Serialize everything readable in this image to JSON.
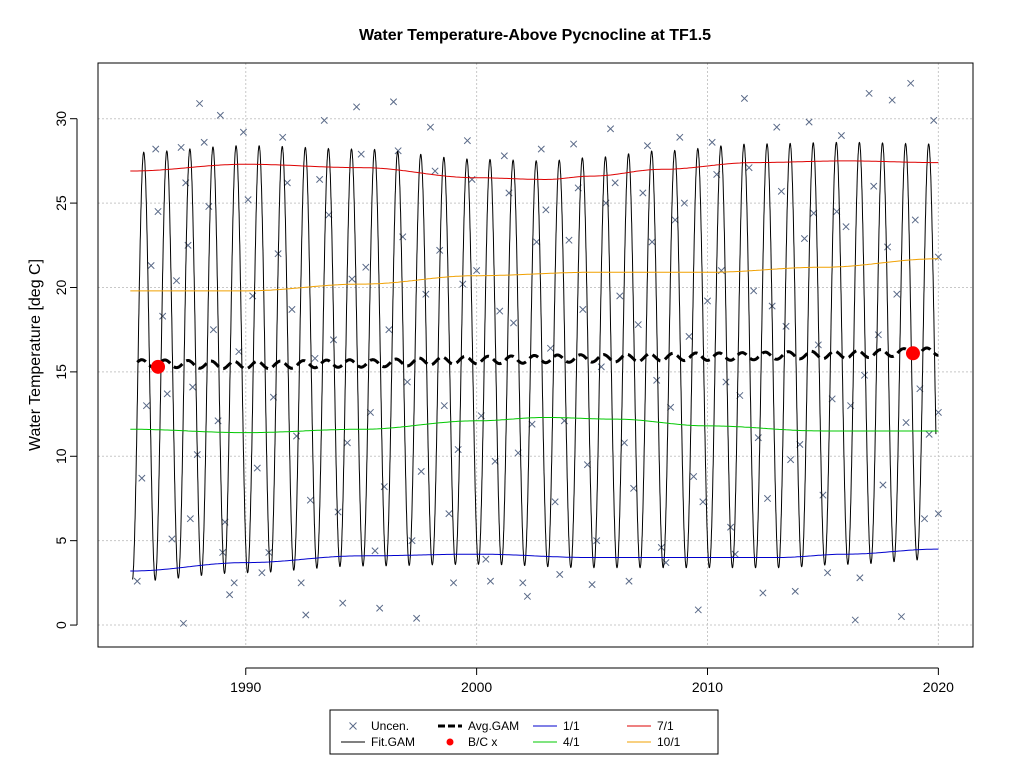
{
  "chart_data": {
    "type": "line",
    "title": "Water Temperature-Above Pycnocline at TF1.5",
    "xlabel": "",
    "ylabel": "Water Temperature [deg C]",
    "xlim": [
      1983.6,
      2021.5
    ],
    "ylim": [
      -1.3,
      33.3
    ],
    "xticks": [
      1990,
      2000,
      2010,
      2020
    ],
    "yticks": [
      0,
      5,
      10,
      15,
      20,
      25,
      30
    ],
    "grid": true,
    "legend_position": "bottom-center",
    "colors": {
      "observations": "#5a6a88",
      "fit": "#000000",
      "avg": "#000000",
      "bc": "#ff0000",
      "jan": "#0000cd",
      "apr": "#00c800",
      "jul": "#dd0000",
      "oct": "#f0a000"
    },
    "legend": [
      {
        "label": "Uncen.",
        "symbol": "x",
        "color": "#5a6a88"
      },
      {
        "label": "Fit.GAM",
        "symbol": "line",
        "color": "#000000"
      },
      {
        "label": "Avg.GAM",
        "symbol": "dashed",
        "color": "#000000"
      },
      {
        "label": "B/C x",
        "symbol": "dot",
        "color": "#ff0000"
      },
      {
        "label": "1/1",
        "symbol": "line",
        "color": "#0000cd"
      },
      {
        "label": "4/1",
        "symbol": "line",
        "color": "#00c800"
      },
      {
        "label": "7/1",
        "symbol": "line",
        "color": "#dd0000"
      },
      {
        "label": "10/1",
        "symbol": "line",
        "color": "#f0a000"
      }
    ],
    "fit_range": [
      1985.1,
      2019.9
    ],
    "series": [
      {
        "name": "1/1",
        "x": [
          1985,
          1990,
          1995,
          2000,
          2005,
          2010,
          2013,
          2016,
          2020
        ],
        "values": [
          3.2,
          3.7,
          4.1,
          4.2,
          4.0,
          4.0,
          4.0,
          4.2,
          4.5
        ]
      },
      {
        "name": "4/1",
        "x": [
          1985,
          1990,
          1995,
          2000,
          2003,
          2006,
          2010,
          2015,
          2020
        ],
        "values": [
          11.6,
          11.4,
          11.6,
          12.1,
          12.3,
          12.2,
          11.8,
          11.5,
          11.5
        ]
      },
      {
        "name": "7/1",
        "x": [
          1985,
          1990,
          1995,
          2000,
          2003,
          2005,
          2008,
          2012,
          2016,
          2020
        ],
        "values": [
          26.9,
          27.3,
          27.1,
          26.5,
          26.4,
          26.6,
          27.0,
          27.4,
          27.5,
          27.4
        ]
      },
      {
        "name": "10/1",
        "x": [
          1985,
          1990,
          1995,
          2000,
          2005,
          2010,
          2015,
          2020
        ],
        "values": [
          19.8,
          19.8,
          20.2,
          20.7,
          20.9,
          20.9,
          21.2,
          21.7
        ]
      },
      {
        "name": "Avg.GAM",
        "x": [
          1985.3,
          1990,
          1995,
          2000,
          2005,
          2010,
          2015,
          2020
        ],
        "values": [
          15.5,
          15.4,
          15.5,
          15.7,
          15.8,
          15.9,
          16.0,
          16.2
        ]
      }
    ],
    "bc_points": [
      {
        "x": 1986.2,
        "y": 15.3
      },
      {
        "x": 2018.9,
        "y": 16.1
      }
    ],
    "observations": [
      [
        1985.3,
        2.6
      ],
      [
        1985.5,
        8.7
      ],
      [
        1985.7,
        13.0
      ],
      [
        1985.9,
        21.3
      ],
      [
        1986.1,
        28.2
      ],
      [
        1986.2,
        24.5
      ],
      [
        1986.4,
        18.3
      ],
      [
        1986.6,
        13.7
      ],
      [
        1986.8,
        5.1
      ],
      [
        1987.0,
        20.4
      ],
      [
        1987.2,
        28.3
      ],
      [
        1987.4,
        26.2
      ],
      [
        1987.5,
        22.5
      ],
      [
        1987.7,
        14.1
      ],
      [
        1987.9,
        10.1
      ],
      [
        1987.3,
        0.1
      ],
      [
        1987.6,
        6.3
      ],
      [
        1988.0,
        30.9
      ],
      [
        1988.2,
        28.6
      ],
      [
        1988.4,
        24.8
      ],
      [
        1988.6,
        17.5
      ],
      [
        1988.8,
        12.1
      ],
      [
        1989.0,
        4.3
      ],
      [
        1989.1,
        6.1
      ],
      [
        1989.3,
        1.8
      ],
      [
        1989.5,
        2.5
      ],
      [
        1989.7,
        16.2
      ],
      [
        1989.9,
        29.2
      ],
      [
        1990.1,
        25.2
      ],
      [
        1990.3,
        19.5
      ],
      [
        1990.5,
        9.3
      ],
      [
        1990.7,
        3.1
      ],
      [
        1988.9,
        30.2
      ],
      [
        1991.0,
        4.3
      ],
      [
        1991.2,
        13.5
      ],
      [
        1991.4,
        22.0
      ],
      [
        1991.6,
        28.9
      ],
      [
        1991.8,
        26.2
      ],
      [
        1992.0,
        18.7
      ],
      [
        1992.2,
        11.2
      ],
      [
        1992.4,
        2.5
      ],
      [
        1992.6,
        0.6
      ],
      [
        1992.8,
        7.4
      ],
      [
        1993.0,
        15.8
      ],
      [
        1993.2,
        26.4
      ],
      [
        1993.4,
        29.9
      ],
      [
        1993.6,
        24.3
      ],
      [
        1993.8,
        16.9
      ],
      [
        1994.0,
        6.7
      ],
      [
        1994.2,
        1.3
      ],
      [
        1994.4,
        10.8
      ],
      [
        1994.6,
        20.5
      ],
      [
        1994.8,
        30.7
      ],
      [
        1995.0,
        27.9
      ],
      [
        1995.2,
        21.2
      ],
      [
        1995.4,
        12.6
      ],
      [
        1995.6,
        4.4
      ],
      [
        1995.8,
        1.0
      ],
      [
        1996.0,
        8.2
      ],
      [
        1996.2,
        17.5
      ],
      [
        1996.4,
        31.0
      ],
      [
        1996.6,
        28.1
      ],
      [
        1996.8,
        23.0
      ],
      [
        1997.0,
        14.4
      ],
      [
        1997.2,
        5.0
      ],
      [
        1997.4,
        0.4
      ],
      [
        1997.6,
        9.1
      ],
      [
        1997.8,
        19.6
      ],
      [
        1998.0,
        29.5
      ],
      [
        1998.2,
        26.9
      ],
      [
        1998.4,
        22.2
      ],
      [
        1998.6,
        13.0
      ],
      [
        1998.8,
        6.6
      ],
      [
        1999.0,
        2.5
      ],
      [
        1999.2,
        10.4
      ],
      [
        1999.4,
        20.2
      ],
      [
        1999.6,
        28.7
      ],
      [
        1999.8,
        26.4
      ],
      [
        2000.0,
        21.0
      ],
      [
        2000.2,
        12.4
      ],
      [
        2000.4,
        3.9
      ],
      [
        2000.6,
        2.6
      ],
      [
        2000.8,
        9.7
      ],
      [
        2001.0,
        18.6
      ],
      [
        2001.2,
        27.8
      ],
      [
        2001.4,
        25.6
      ],
      [
        2001.6,
        17.9
      ],
      [
        2001.8,
        10.2
      ],
      [
        2002.0,
        2.5
      ],
      [
        2002.2,
        1.7
      ],
      [
        2002.4,
        11.9
      ],
      [
        2002.6,
        22.7
      ],
      [
        2002.8,
        28.2
      ],
      [
        2003.0,
        24.6
      ],
      [
        2003.2,
        16.4
      ],
      [
        2003.4,
        7.3
      ],
      [
        2003.6,
        3.0
      ],
      [
        2003.8,
        12.1
      ],
      [
        2004.0,
        22.8
      ],
      [
        2004.2,
        28.5
      ],
      [
        2004.4,
        25.9
      ],
      [
        2004.6,
        18.7
      ],
      [
        2004.8,
        9.5
      ],
      [
        2005.0,
        2.4
      ],
      [
        2005.2,
        5.0
      ],
      [
        2005.4,
        15.3
      ],
      [
        2005.6,
        25.0
      ],
      [
        2005.8,
        29.4
      ],
      [
        2006.0,
        26.2
      ],
      [
        2006.2,
        19.5
      ],
      [
        2006.4,
        10.8
      ],
      [
        2006.6,
        2.6
      ],
      [
        2006.8,
        8.1
      ],
      [
        2007.0,
        17.8
      ],
      [
        2007.2,
        25.6
      ],
      [
        2007.4,
        28.4
      ],
      [
        2007.6,
        22.7
      ],
      [
        2007.8,
        14.5
      ],
      [
        2008.0,
        4.6
      ],
      [
        2008.2,
        3.7
      ],
      [
        2008.4,
        12.9
      ],
      [
        2008.6,
        24.0
      ],
      [
        2008.8,
        28.9
      ],
      [
        2009.0,
        25.0
      ],
      [
        2009.2,
        17.1
      ],
      [
        2009.4,
        8.8
      ],
      [
        2009.6,
        0.9
      ],
      [
        2009.8,
        7.3
      ],
      [
        2010.0,
        19.2
      ],
      [
        2010.2,
        28.6
      ],
      [
        2010.4,
        26.7
      ],
      [
        2010.6,
        21.0
      ],
      [
        2010.8,
        14.4
      ],
      [
        2011.0,
        5.8
      ],
      [
        2011.2,
        4.2
      ],
      [
        2011.4,
        13.6
      ],
      [
        2011.6,
        31.2
      ],
      [
        2011.8,
        27.1
      ],
      [
        2012.0,
        19.8
      ],
      [
        2012.2,
        11.1
      ],
      [
        2012.4,
        1.9
      ],
      [
        2012.6,
        7.5
      ],
      [
        2012.8,
        18.9
      ],
      [
        2013.0,
        29.5
      ],
      [
        2013.2,
        25.7
      ],
      [
        2013.4,
        17.7
      ],
      [
        2013.6,
        9.8
      ],
      [
        2013.8,
        2.0
      ],
      [
        2014.0,
        10.7
      ],
      [
        2014.2,
        22.9
      ],
      [
        2014.4,
        29.8
      ],
      [
        2014.6,
        24.4
      ],
      [
        2014.8,
        16.6
      ],
      [
        2015.0,
        7.7
      ],
      [
        2015.2,
        3.1
      ],
      [
        2015.4,
        13.4
      ],
      [
        2015.6,
        24.5
      ],
      [
        2015.8,
        29.0
      ],
      [
        2016.0,
        23.6
      ],
      [
        2016.2,
        13.0
      ],
      [
        2016.4,
        0.3
      ],
      [
        2016.6,
        2.8
      ],
      [
        2016.8,
        14.8
      ],
      [
        2017.0,
        31.5
      ],
      [
        2017.2,
        26.0
      ],
      [
        2017.4,
        17.2
      ],
      [
        2017.6,
        8.3
      ],
      [
        2017.8,
        22.4
      ],
      [
        2018.0,
        31.1
      ],
      [
        2018.2,
        19.6
      ],
      [
        2018.4,
        0.5
      ],
      [
        2018.6,
        12.0
      ],
      [
        2018.8,
        32.1
      ],
      [
        2019.0,
        24.0
      ],
      [
        2019.2,
        14.0
      ],
      [
        2019.4,
        6.3
      ],
      [
        2019.6,
        11.3
      ],
      [
        2019.8,
        29.9
      ],
      [
        2020.0,
        21.8
      ],
      [
        2020.0,
        12.6
      ],
      [
        2020.0,
        6.6
      ]
    ]
  }
}
